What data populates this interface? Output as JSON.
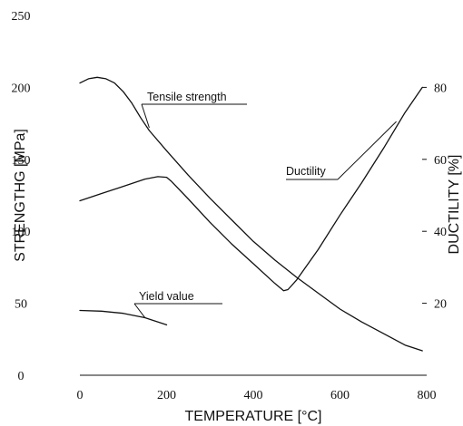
{
  "chart_data": {
    "type": "line",
    "xlabel": "TEMPERATURE [°C]",
    "ylabel_left": "STRENGTHG [MPa]",
    "ylabel_right": "DUCTILITY [%]",
    "xlim": [
      0,
      800
    ],
    "ylim_left": [
      0,
      250
    ],
    "ylim_right": [
      0,
      100
    ],
    "x_ticks": [
      "0",
      "200",
      "400",
      "600",
      "800"
    ],
    "y_left_ticks": [
      "0",
      "50",
      "100",
      "150",
      "200",
      "250"
    ],
    "y_right_ticks": [
      "20",
      "40",
      "60",
      "80"
    ],
    "grid": false,
    "series": [
      {
        "name": "Tensile strength",
        "axis": "left",
        "x": [
          0,
          20,
          40,
          60,
          80,
          100,
          120,
          140,
          160,
          200,
          250,
          300,
          350,
          400,
          450,
          500,
          550,
          600,
          650,
          700,
          750,
          790
        ],
        "y": [
          203,
          206,
          207,
          206,
          203,
          197,
          189,
          179,
          170,
          156,
          139,
          123,
          108,
          93,
          80,
          68,
          57,
          46,
          37,
          29,
          21,
          17
        ]
      },
      {
        "name": "Ductility",
        "axis": "right",
        "x": [
          0,
          50,
          100,
          150,
          180,
          200,
          210,
          250,
          300,
          350,
          400,
          450,
          470,
          480,
          500,
          550,
          600,
          650,
          700,
          750,
          790
        ],
        "y": [
          48.5,
          50.5,
          52.5,
          54.5,
          55.2,
          55.0,
          54.0,
          49.0,
          42.5,
          36.5,
          31.0,
          25.5,
          23.5,
          23.8,
          26.5,
          35.0,
          44.5,
          53.5,
          63.0,
          73.0,
          80.0
        ]
      },
      {
        "name": "Yield value",
        "axis": "left",
        "x": [
          0,
          50,
          100,
          150,
          200
        ],
        "y": [
          45,
          44.5,
          43,
          40,
          35
        ]
      }
    ],
    "annotations": [
      {
        "text": "Tensile strength",
        "target_x": 160,
        "target_y_left": 172
      },
      {
        "text": "Ductility",
        "target_x": 730,
        "target_y_right": 70.5
      },
      {
        "text": "Yield value",
        "target_x": 150,
        "target_y_left": 40
      }
    ]
  }
}
